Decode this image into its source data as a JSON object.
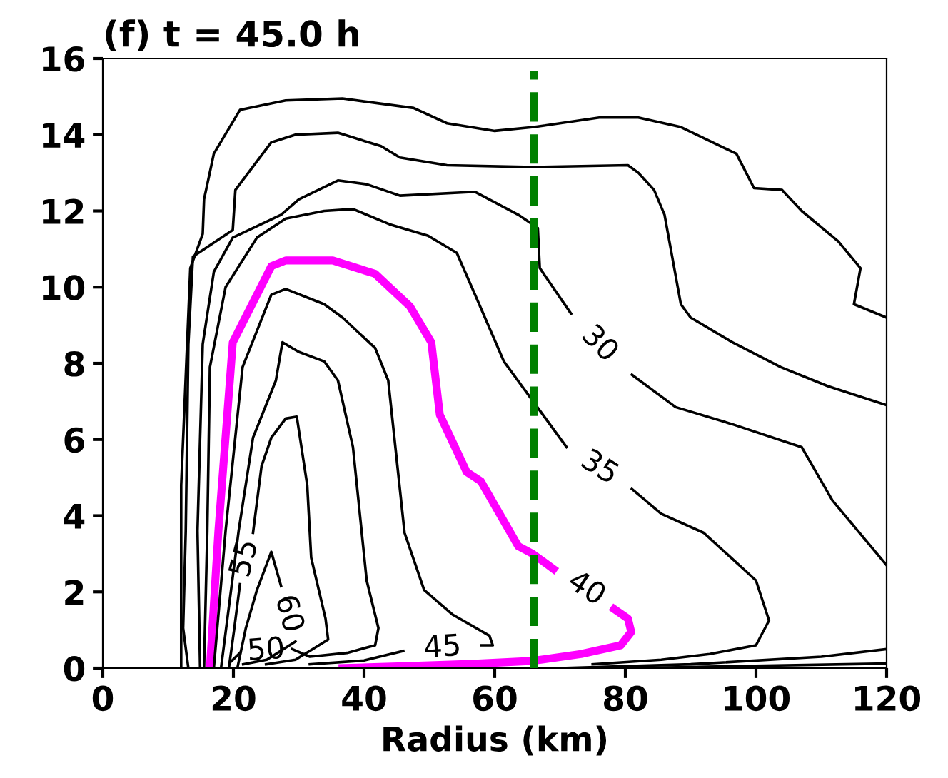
{
  "chart_data": {
    "type": "line",
    "title": "(f) t = 45.0 h",
    "xlabel": "Radius (km)",
    "xlim": [
      0,
      120
    ],
    "xticks": [
      0,
      20,
      40,
      60,
      80,
      100,
      120
    ],
    "ylim": [
      0,
      16
    ],
    "yticks": [
      0,
      2,
      4,
      6,
      8,
      10,
      12,
      14,
      16
    ],
    "grid": false,
    "legend": false,
    "marker": "none",
    "line_style": "solid",
    "series": [
      {
        "color": "#000000",
        "x": [
          12.0,
          12.0,
          12.0,
          13.4,
          15.3,
          15.5,
          17,
          21,
          28,
          36.7,
          47.6,
          52.7,
          60,
          66,
          76,
          82,
          88.5,
          97,
          99.7,
          104,
          107,
          112.6,
          116,
          115,
          120
        ],
        "values": [
          0,
          1.0,
          4.8,
          10.5,
          11.4,
          12.3,
          13.5,
          14.65,
          14.9,
          14.95,
          14.7,
          14.3,
          14.1,
          14.2,
          14.45,
          14.45,
          14.2,
          13.5,
          12.6,
          12.55,
          12.0,
          11.2,
          10.5,
          9.55,
          9.2
        ]
      },
      {
        "color": "#000000",
        "x": [
          13.1,
          12.3,
          12.7,
          13.1,
          13.8,
          19.9,
          20.3,
          25.8,
          29.5,
          36,
          42.6,
          45.5,
          52.7,
          65.8,
          80.4,
          82,
          84.4,
          86,
          88.5,
          90,
          96.4,
          103.8,
          111,
          120
        ],
        "values": [
          0,
          1.05,
          3.6,
          8.5,
          10.8,
          11.5,
          12.55,
          13.8,
          14.0,
          14.05,
          13.7,
          13.4,
          13.2,
          13.15,
          13.2,
          13.0,
          12.55,
          11.9,
          9.55,
          9.2,
          8.55,
          7.9,
          7.4,
          6.9
        ]
      },
      {
        "name": "30",
        "color": "#000000",
        "x": [
          14.9,
          14.5,
          15.3,
          17,
          19.9,
          27.3,
          30,
          36,
          40.4,
          45.5,
          57,
          63.6,
          66.6,
          66.9,
          71.7,
          76,
          81,
          87.7,
          96.4,
          107,
          111.7,
          120
        ],
        "values": [
          0,
          3.6,
          8.5,
          10.4,
          11.3,
          11.9,
          12.3,
          12.8,
          12.7,
          12.4,
          12.5,
          11.9,
          11.55,
          10.5,
          9.3,
          null,
          7.7,
          6.85,
          6.4,
          5.8,
          4.4,
          2.7
        ]
      },
      {
        "name": "35",
        "color": "#000000",
        "x": [
          15.5,
          16,
          16.4,
          18.8,
          23.6,
          28,
          33.9,
          38.3,
          43.9,
          49.8,
          54.2,
          57,
          61.4,
          71,
          76,
          81,
          85.5,
          92,
          100,
          102,
          100,
          92.9,
          85.5,
          75
        ],
        "values": [
          0,
          3.6,
          7.9,
          10.0,
          11.3,
          11.8,
          12.0,
          12.05,
          11.65,
          11.35,
          10.9,
          9.8,
          8.05,
          5.8,
          null,
          4.7,
          4.05,
          3.55,
          2.3,
          1.25,
          0.6,
          0.37,
          0.22,
          0.1
        ]
      },
      {
        "name": "40",
        "color": "#ff00ff",
        "x": [
          16.4,
          17.7,
          19.9,
          25.8,
          28,
          35.2,
          41.7,
          47,
          50.3,
          51.6,
          55.7,
          57.9,
          63.6,
          65.8,
          69,
          74,
          78.3,
          80.4,
          80.9,
          79.3,
          73.2,
          65.8,
          56.4,
          46,
          36.7
        ],
        "values": [
          0,
          3.6,
          8.55,
          10.55,
          10.7,
          10.7,
          10.35,
          9.5,
          8.55,
          6.65,
          5.15,
          4.9,
          3.2,
          3.0,
          2.6,
          null,
          1.55,
          1.3,
          0.95,
          0.6,
          0.37,
          0.19,
          0.11,
          0.05,
          0
        ]
      },
      {
        "name": "45",
        "color": "#000000",
        "x": [
          17,
          18.8,
          21.4,
          25.8,
          28,
          33.9,
          36.7,
          41.7,
          43.7,
          46.2,
          49.2,
          53.6,
          59.2,
          59.7,
          58,
          52,
          46,
          40,
          31.7
        ],
        "values": [
          0,
          3.6,
          7.9,
          9.8,
          9.95,
          9.55,
          9.2,
          8.4,
          7.55,
          3.55,
          2.05,
          1.4,
          0.85,
          0.6,
          0.6,
          null,
          0.45,
          0.2,
          0.1
        ]
      },
      {
        "name": "50",
        "color": "#000000",
        "x": [
          18.1,
          20.8,
          23,
          26.5,
          27.5,
          30,
          33.9,
          36,
          38.3,
          40.4,
          42.2,
          41.7,
          37.4,
          31.7,
          29,
          25,
          21,
          19.5
        ],
        "values": [
          0,
          3.6,
          6.05,
          7.55,
          8.55,
          8.3,
          8.05,
          7.55,
          5.8,
          2.3,
          1.05,
          0.6,
          0.4,
          0.3,
          0.5,
          null,
          0.4,
          0.15
        ]
      },
      {
        "name": "55",
        "color": "#000000",
        "x": [
          19.3,
          20.1,
          21,
          21.8,
          23,
          24.3,
          25.8,
          28,
          29.7,
          31.3,
          31.9,
          34.1,
          34.5,
          29.5,
          25
        ],
        "values": [
          0,
          1.0,
          2.2,
          null,
          3.55,
          5.3,
          6.05,
          6.55,
          6.6,
          4.8,
          2.9,
          1.3,
          0.75,
          0.22,
          0.1
        ]
      },
      {
        "name": "60",
        "color": "#000000",
        "x": [
          20.6,
          21.9,
          23.6,
          25.8,
          27.3,
          28.4,
          29.5,
          25.1,
          21.5
        ],
        "values": [
          0,
          1.05,
          2.05,
          3.05,
          2.15,
          null,
          0.7,
          0.22,
          0.1
        ]
      },
      {
        "color": "#000000",
        "x": [
          70,
          90,
          110,
          120
        ],
        "values": [
          0.0,
          0.1,
          0.3,
          0.5
        ]
      },
      {
        "color": "#000000",
        "x": [
          80,
          120
        ],
        "values": [
          0.0,
          0.12
        ]
      }
    ],
    "ref_lines": [
      {
        "axis": "x",
        "value": 66,
        "color": "#008000",
        "line_style": "dashed"
      }
    ]
  }
}
